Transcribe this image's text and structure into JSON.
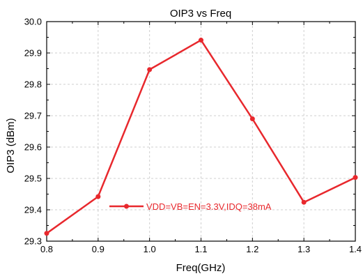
{
  "chart_data": {
    "type": "line",
    "title": "OIP3 vs Freq",
    "xlabel": "Freq(GHz)",
    "ylabel": "OIP3 (dBm)",
    "xlim": [
      0.8,
      1.4
    ],
    "ylim": [
      29.3,
      30.0
    ],
    "x_ticks": [
      "0.8",
      "0.9",
      "1.0",
      "1.1",
      "1.2",
      "1.3",
      "1.4"
    ],
    "y_ticks": [
      "29.3",
      "29.4",
      "29.5",
      "29.6",
      "29.7",
      "29.8",
      "29.9",
      "30.0"
    ],
    "grid": true,
    "legend_position": "lower-center",
    "series": [
      {
        "name": "VDD=VB=EN=3.3V,IDQ=38mA",
        "color": "#e8282d",
        "x": [
          0.8,
          0.9,
          1.0,
          1.1,
          1.2,
          1.3,
          1.4
        ],
        "y": [
          29.325,
          29.442,
          29.847,
          29.941,
          29.69,
          29.424,
          29.503
        ]
      }
    ]
  }
}
